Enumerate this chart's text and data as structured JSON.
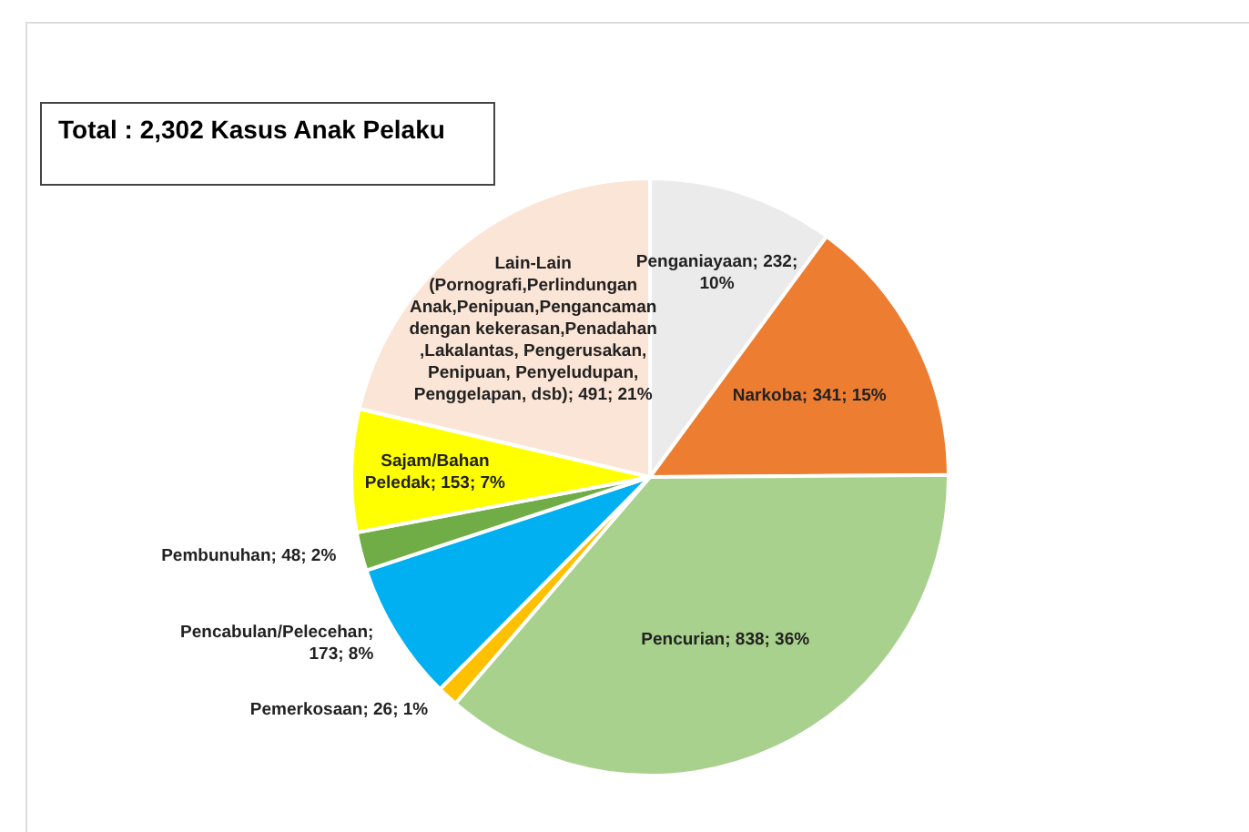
{
  "chart_data": {
    "type": "pie",
    "title": "Total : 2,302 Kasus Anak Pelaku",
    "categories": [
      "Penganiayaan",
      "Narkoba",
      "Pencurian",
      "Pemerkosaan",
      "Pencabulan/Pelecehan",
      "Pembunuhan",
      "Sajam/Bahan Peledak",
      "Lain-Lain (Pornografi,Perlindungan Anak,Penipuan,Pengancaman dengan kekerasan,Penadahan ,Lakalantas, Pengerusakan, Penipuan, Penyeludupan, Penggelapan, dsb)"
    ],
    "values": [
      232,
      341,
      838,
      26,
      173,
      48,
      153,
      491
    ],
    "colors": [
      "#ebebeb",
      "#ed7d31",
      "#a9d18e",
      "#ffc000",
      "#00b0f0",
      "#70ad47",
      "#ffff00",
      "#fbe5d6"
    ],
    "value_labels": [
      "; 232; 10%",
      "; 341; 15%",
      "; 838; 36%",
      "; 26; 1%",
      "; 173; 8%",
      "; 48; 2%",
      "; 153; 7%",
      "; 491; 21%"
    ],
    "legend": false
  }
}
